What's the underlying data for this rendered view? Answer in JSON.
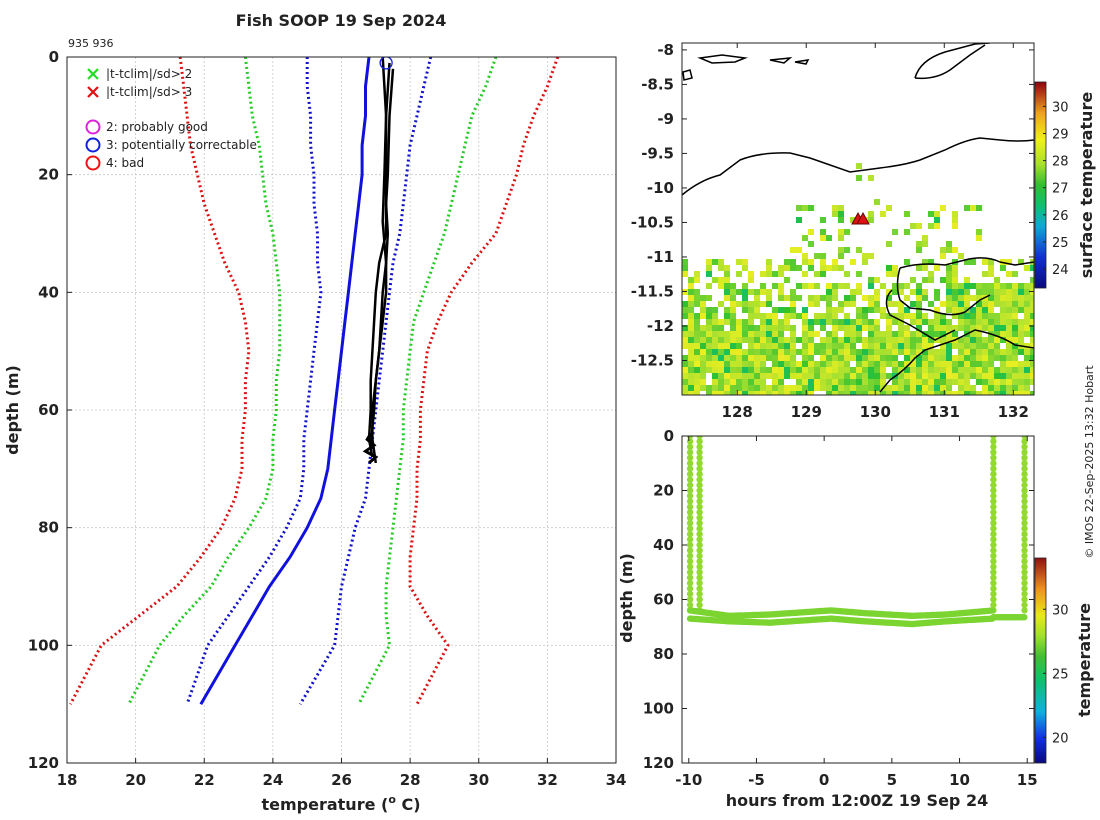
{
  "chart_data": [
    {
      "type": "line",
      "title": "Fish SOOP 19 Sep 2024",
      "subtitle": "935 936",
      "xlabel": "temperature (° C)",
      "xlabel_parts": {
        "pre": "temperature (",
        "sup": "o",
        "post": " C)"
      },
      "ylabel": "depth (m)",
      "xlim": [
        18,
        34
      ],
      "ylim": [
        0,
        120
      ],
      "xticks": [
        "18",
        "20",
        "22",
        "24",
        "26",
        "28",
        "30",
        "32",
        "34"
      ],
      "yticks": [
        "0",
        "20",
        "40",
        "60",
        "80",
        "100",
        "120"
      ],
      "grid": true,
      "legend": {
        "placement": "top-left",
        "flags": [
          {
            "label": "|t-tclim|/sd> 2",
            "color": "#22dd22",
            "marker": "x"
          },
          {
            "label": "|t-tclim|/sd> 3",
            "color": "#dd1111",
            "marker": "x"
          }
        ],
        "qc": [
          {
            "label": "2: probably good",
            "color": "#dd22dd",
            "marker": "o"
          },
          {
            "label": "3: potentially correctable",
            "color": "#1122dd",
            "marker": "o"
          },
          {
            "label": "4: bad",
            "color": "#ee1111",
            "marker": "o"
          }
        ]
      },
      "depths": [
        0,
        5,
        10,
        15,
        20,
        25,
        30,
        35,
        40,
        45,
        50,
        55,
        60,
        65,
        70,
        75,
        80,
        85,
        90,
        95,
        100,
        110
      ],
      "series": [
        {
          "name": "clim +3sd",
          "color": "#dd1111",
          "dash": true,
          "temps": [
            32.3,
            32,
            31.6,
            31.3,
            31.1,
            30.8,
            30.5,
            29.8,
            29.2,
            28.8,
            28.5,
            28.4,
            28.3,
            28.3,
            28.2,
            28.2,
            28.1,
            28.0,
            28.0,
            28.5,
            29.1,
            28.2
          ]
        },
        {
          "name": "clim +2sd",
          "color": "#22cc22",
          "dash": true,
          "temps": [
            30.5,
            30.2,
            29.8,
            29.6,
            29.4,
            29.2,
            29.0,
            28.7,
            28.4,
            28.1,
            28.0,
            27.9,
            27.8,
            27.8,
            27.7,
            27.6,
            27.5,
            27.4,
            27.3,
            27.3,
            27.4,
            26.5
          ]
        },
        {
          "name": "clim +1sd",
          "color": "#1111cc",
          "dash": true,
          "temps": [
            28.6,
            28.4,
            28.2,
            28.0,
            27.9,
            27.8,
            27.7,
            27.5,
            27.4,
            27.3,
            27.2,
            27.1,
            27.0,
            26.9,
            26.8,
            26.7,
            26.4,
            26.2,
            26.0,
            25.9,
            25.8,
            24.8
          ]
        },
        {
          "name": "clim mean",
          "color": "#1111dd",
          "dash": false,
          "temps": [
            26.8,
            26.7,
            26.7,
            26.6,
            26.6,
            26.5,
            26.4,
            26.3,
            26.2,
            26.1,
            26.0,
            25.9,
            25.8,
            25.7,
            25.6,
            25.4,
            25.0,
            24.5,
            23.9,
            23.4,
            22.9,
            21.9
          ]
        },
        {
          "name": "clim -1sd",
          "color": "#1111cc",
          "dash": true,
          "temps": [
            25.0,
            25.0,
            25.1,
            25.1,
            25.2,
            25.2,
            25.3,
            25.3,
            25.4,
            25.3,
            25.2,
            25.1,
            25.0,
            24.9,
            24.9,
            24.8,
            24.4,
            23.9,
            23.3,
            22.7,
            22.1,
            21.5
          ]
        },
        {
          "name": "clim -2sd",
          "color": "#22cc22",
          "dash": true,
          "temps": [
            23.2,
            23.3,
            23.4,
            23.6,
            23.7,
            23.8,
            24.0,
            24.1,
            24.2,
            24.2,
            24.2,
            24.1,
            24.1,
            24.0,
            24.0,
            23.8,
            23.3,
            22.7,
            22.2,
            21.4,
            20.7,
            19.8
          ]
        },
        {
          "name": "clim -3sd",
          "color": "#dd1111",
          "dash": true,
          "temps": [
            21.3,
            21.4,
            21.5,
            21.6,
            21.8,
            22.0,
            22.3,
            22.6,
            23.0,
            23.2,
            23.3,
            23.2,
            23.2,
            23.1,
            23.1,
            22.9,
            22.5,
            21.9,
            21.2,
            20.1,
            19.0,
            18.1
          ]
        }
      ],
      "profiles": {
        "color": "#000000",
        "casts": [
          {
            "depths": [
              1,
              10,
              20,
              30,
              35,
              40,
              45,
              50,
              55,
              60,
              65,
              68
            ],
            "temps": [
              27.4,
              27.3,
              27.3,
              27.3,
              27.1,
              27.0,
              26.95,
              26.9,
              26.85,
              26.85,
              26.8,
              26.9
            ]
          },
          {
            "depths": [
              2,
              10,
              20,
              25,
              30,
              35,
              40,
              45,
              50,
              55,
              60,
              65,
              69
            ],
            "temps": [
              27.5,
              27.4,
              27.35,
              27.3,
              27.35,
              27.3,
              27.3,
              27.2,
              27.1,
              27.0,
              26.9,
              26.9,
              27.0
            ]
          },
          {
            "depths": [
              0,
              10,
              20,
              28,
              35,
              40,
              50,
              55,
              60,
              66
            ],
            "temps": [
              27.2,
              27.3,
              27.25,
              27.2,
              27.3,
              27.2,
              27.1,
              27.0,
              26.95,
              26.85
            ]
          }
        ],
        "qc3_marker_depth": 1,
        "qc3_marker_temp": 27.3
      }
    },
    {
      "type": "heatmap",
      "subtitle": "surface temperature map",
      "xticks": [
        "128",
        "129",
        "130",
        "131",
        "132"
      ],
      "yticks": [
        "-8",
        "-8.5",
        "-9",
        "-9.5",
        "-10",
        "-10.5",
        "-11",
        "-11.5",
        "-12",
        "-12.5"
      ],
      "xlim": [
        127.2,
        132.3
      ],
      "ylim": [
        -13.0,
        -7.9
      ],
      "colorbar": {
        "label": "surface temperature",
        "range": [
          23.3,
          30.9
        ],
        "ticks": [
          "24",
          "25",
          "26",
          "27",
          "28",
          "29",
          "30"
        ]
      },
      "marker": {
        "lon": 129.75,
        "lat": -10.45,
        "symbol": "triangle",
        "color": "#dd1111"
      }
    },
    {
      "type": "scatter",
      "xlabel": "hours from 12:00Z 19 Sep 24",
      "ylabel": "depth (m)",
      "xlim": [
        -10.5,
        15.5
      ],
      "ylim": [
        0,
        120
      ],
      "xticks": [
        "-10",
        "-5",
        "0",
        "5",
        "10",
        "15"
      ],
      "yticks": [
        "0",
        "20",
        "40",
        "60",
        "80",
        "100",
        "120"
      ],
      "colorbar": {
        "label": "temperature",
        "range": [
          18,
          34
        ],
        "ticks": [
          "20",
          "25",
          "30"
        ]
      },
      "casts": [
        {
          "hours_down": -9.9,
          "hours_up": -9.2,
          "color_temp": 27.3
        },
        {
          "hours_down": 12.5,
          "hours_up": 14.8,
          "color_temp": 27.3
        }
      ],
      "bottom_track": {
        "hours": [
          -9.9,
          -7,
          -4,
          -1,
          0.5,
          3,
          6.5,
          9,
          12.5
        ],
        "depth_a": [
          64,
          66,
          65.5,
          64.5,
          64,
          65,
          66,
          65.5,
          64
        ],
        "depth_b": [
          67,
          68,
          68.5,
          67.5,
          67,
          68,
          69,
          68,
          67
        ],
        "color_temp": 27.0
      }
    }
  ],
  "watermark": "© IMOS 22-Sep-2025 13:32 Hobart"
}
